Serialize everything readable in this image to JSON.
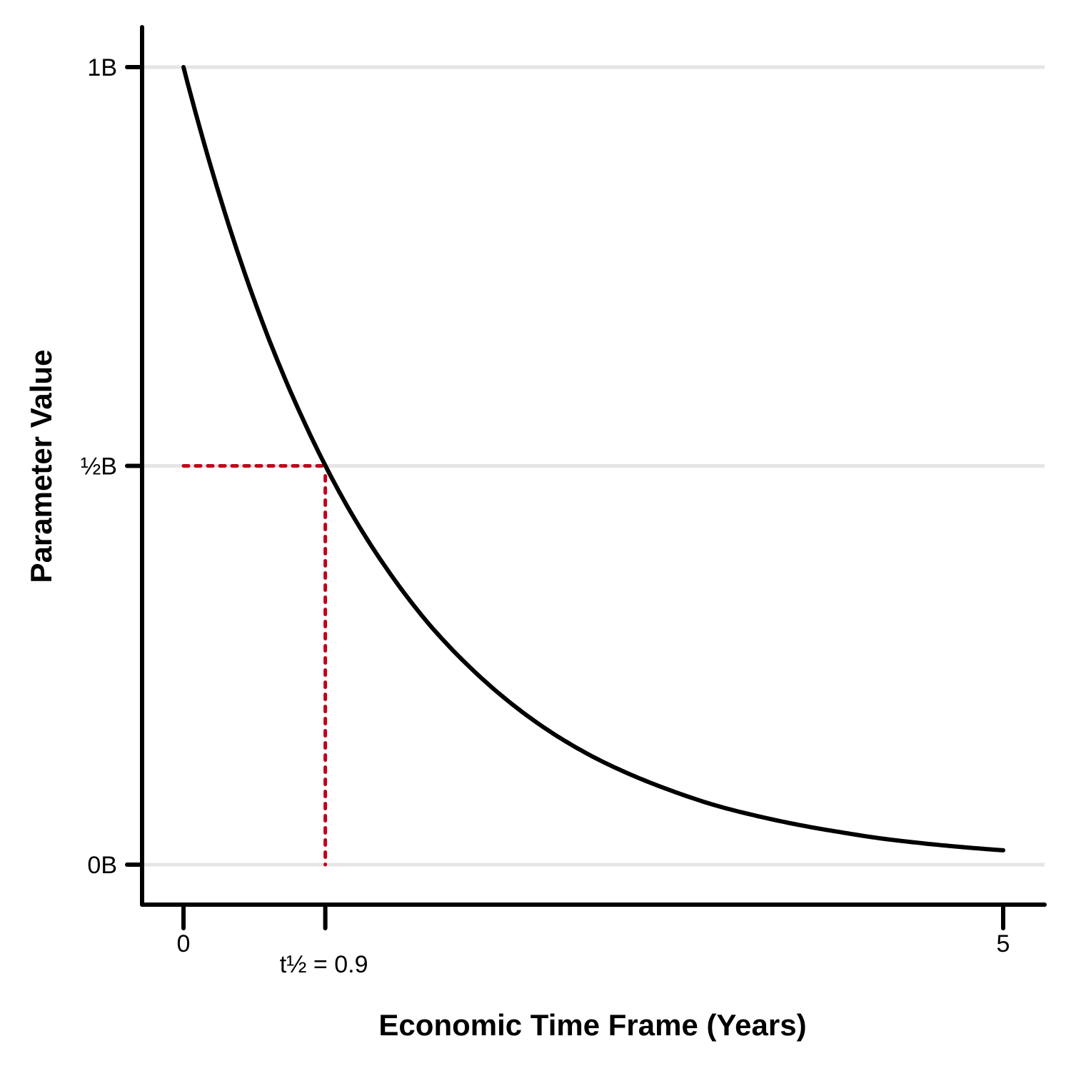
{
  "chart_data": {
    "type": "line",
    "title": "",
    "xlabel": "Economic Time Frame (Years)",
    "ylabel": "Parameter Value",
    "xlim": [
      0,
      5
    ],
    "ylim": [
      0,
      1
    ],
    "grid": "horizontal",
    "x_ticks": [
      {
        "value": 0,
        "label": "0"
      },
      {
        "value": 0.865,
        "label": "t½ = 0.9"
      },
      {
        "value": 5,
        "label": "5"
      }
    ],
    "y_ticks": [
      {
        "value": 0,
        "label": "0B"
      },
      {
        "value": 0.5,
        "label": "½B"
      },
      {
        "value": 1,
        "label": "1B"
      }
    ],
    "series": [
      {
        "x": [
          0,
          0.25,
          0.5,
          0.75,
          1,
          1.25,
          1.5,
          1.75,
          2,
          2.25,
          2.5,
          2.75,
          3,
          3.25,
          3.5,
          3.75,
          4,
          4.25,
          4.5,
          4.75,
          5
        ],
        "values": [
          1.0,
          0.819,
          0.67,
          0.549,
          0.449,
          0.368,
          0.301,
          0.247,
          0.202,
          0.165,
          0.135,
          0.111,
          0.091,
          0.074,
          0.061,
          0.05,
          0.041,
          0.033,
          0.027,
          0.022,
          0.018
        ],
        "color": "#000000"
      }
    ],
    "annotations": [
      {
        "type": "half-life-guide",
        "x": 0.865,
        "y": 0.5,
        "color": "#c0001a"
      }
    ]
  }
}
